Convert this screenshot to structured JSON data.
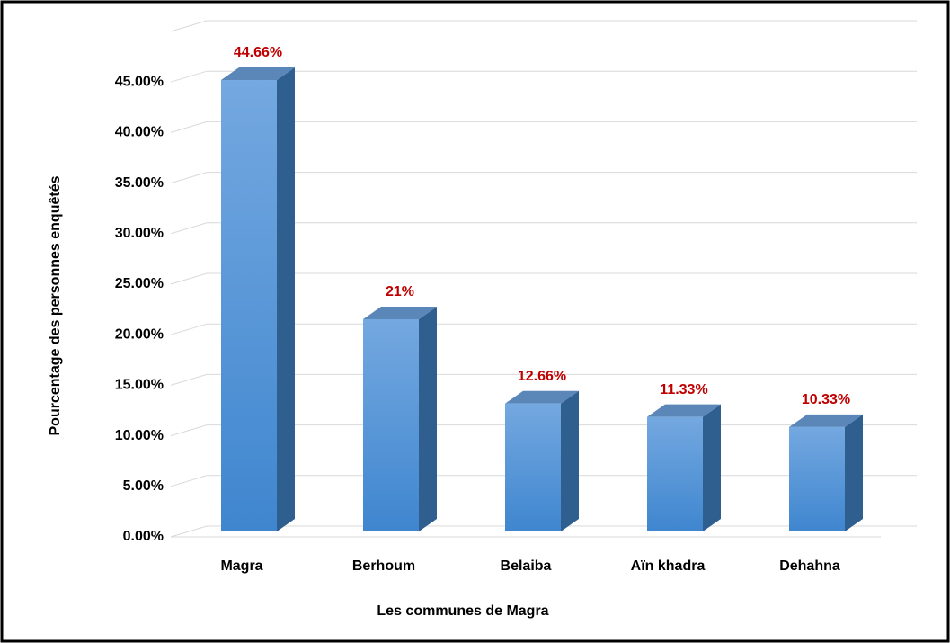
{
  "chart_data": {
    "type": "bar3d",
    "categories": [
      "Magra",
      "Berhoum",
      "Belaiba",
      "Aïn khadra",
      "Dehahna"
    ],
    "values": [
      44.66,
      21,
      12.66,
      11.33,
      10.33
    ],
    "value_labels": [
      "44.66%",
      "21%",
      "12.66%",
      "11.33%",
      "10.33%"
    ],
    "color": "#4a8fd6",
    "label_color": "#c00000",
    "ylim": [
      0,
      50
    ],
    "yticks": [
      {
        "value": 0,
        "label": "0.00%"
      },
      {
        "value": 5,
        "label": "5.00%"
      },
      {
        "value": 10,
        "label": "10.00%"
      },
      {
        "value": 15,
        "label": "15.00%"
      },
      {
        "value": 20,
        "label": "20.00%"
      },
      {
        "value": 25,
        "label": "25.00%"
      },
      {
        "value": 30,
        "label": "30.00%"
      },
      {
        "value": 35,
        "label": "35.00%"
      },
      {
        "value": 40,
        "label": "40.00%"
      },
      {
        "value": 45,
        "label": "45.00%"
      }
    ],
    "grid": true,
    "x_label": "Les communes de Magra",
    "y_label": "Pourcentage des personnes enquêtés"
  }
}
